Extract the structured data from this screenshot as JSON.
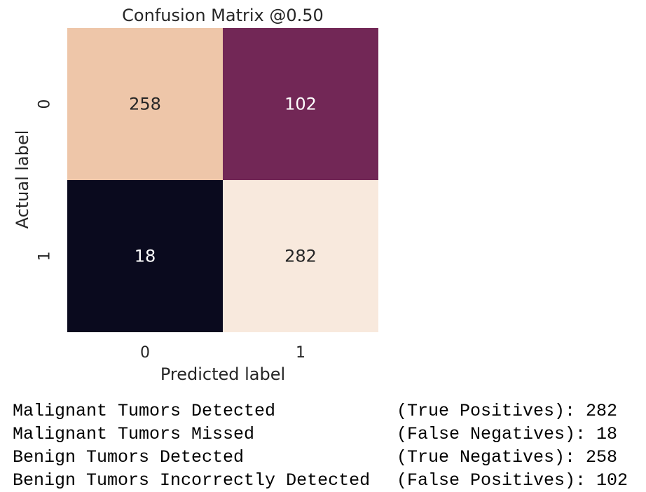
{
  "chart_data": {
    "type": "heatmap",
    "title": "Confusion Matrix @0.50",
    "xlabel": "Predicted label",
    "ylabel": "Actual label",
    "x_categories": [
      "0",
      "1"
    ],
    "y_categories": [
      "0",
      "1"
    ],
    "values": [
      [
        258,
        102
      ],
      [
        18,
        282
      ]
    ],
    "colorbar": false,
    "colors": {
      "258": "#EEC6A9",
      "102": "#722756",
      "18": "#0A0A1E",
      "282": "#F8E9DD"
    },
    "annotation_colors": {
      "dark_text": "#262626",
      "light_text": "#FFFFFF"
    }
  },
  "stats": [
    {
      "label": "Malignant Tumors Detected",
      "metric": "(True Positives): 282"
    },
    {
      "label": "Malignant Tumors Missed",
      "metric": "(False Negatives): 18"
    },
    {
      "label": "Benign Tumors Detected",
      "metric": "(True Negatives): 258"
    },
    {
      "label": "Benign Tumors Incorrectly Detected",
      "metric": "(False Positives): 102"
    }
  ]
}
